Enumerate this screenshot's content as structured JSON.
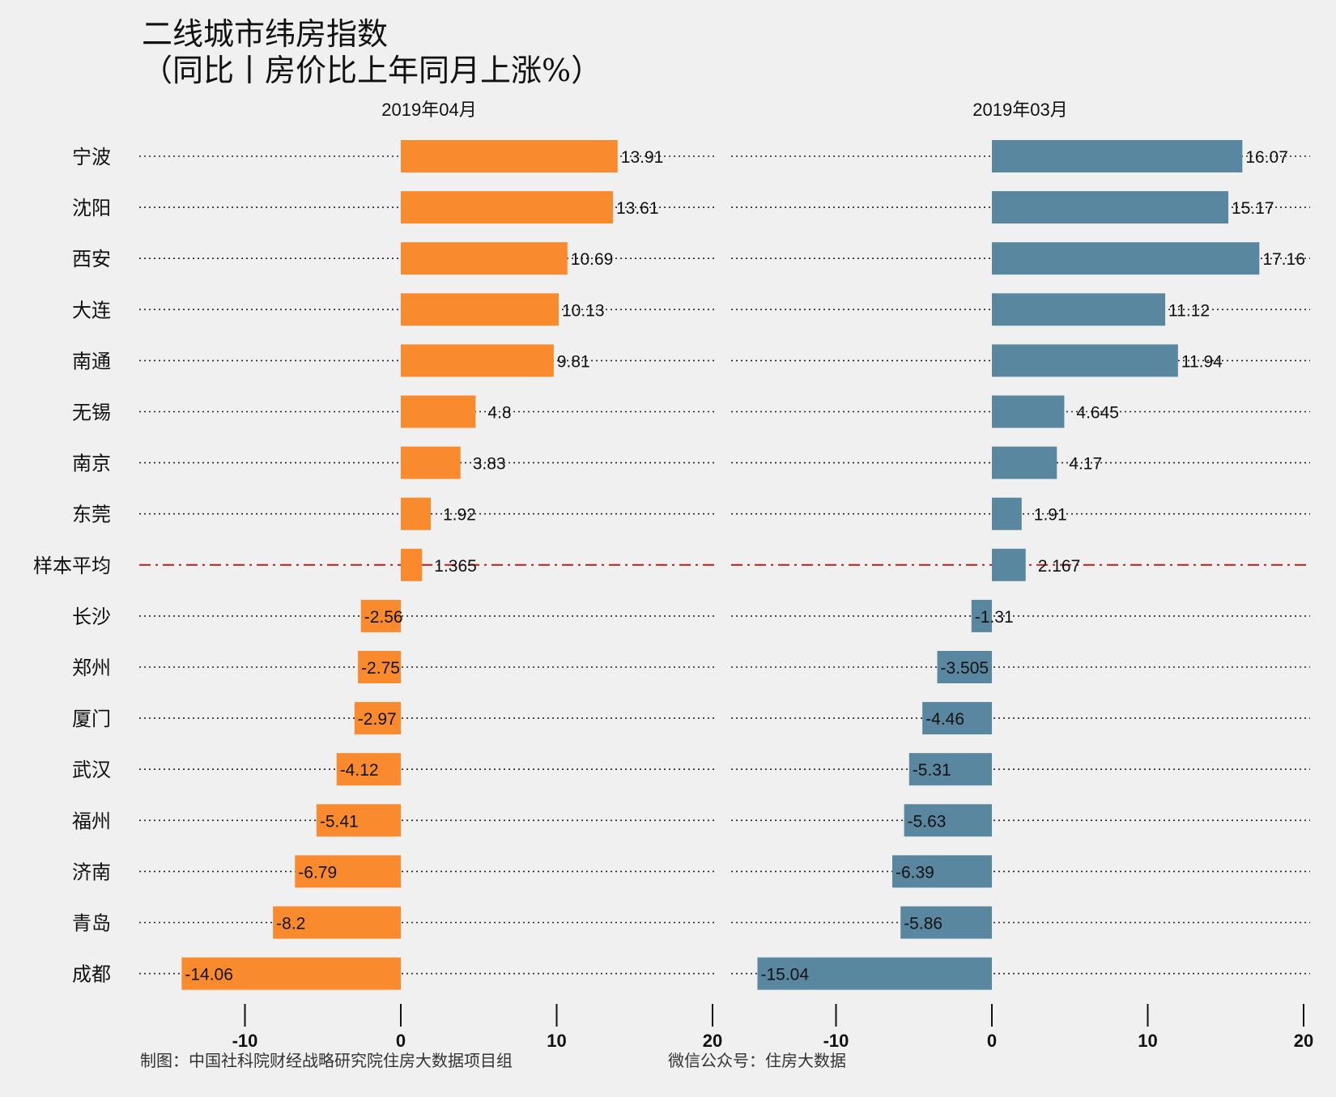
{
  "title_line1": "二线城市纬房指数",
  "title_line2": "（同比丨房价比上年同月上涨%）",
  "footer": {
    "credit": "制图：中国社科院财经战略研究院住房大数据项目组",
    "wechat": "微信公众号：住房大数据"
  },
  "colors": {
    "left_bar": "#fa8a2e",
    "right_bar": "#5a87a0",
    "average_line": "#b22222",
    "background": "#f0f0f0",
    "text": "#111111"
  },
  "chart_data": [
    {
      "type": "bar",
      "orientation": "horizontal",
      "title": "2019年04月",
      "categories": [
        "宁波",
        "沈阳",
        "西安",
        "大连",
        "南通",
        "无锡",
        "南京",
        "东莞",
        "样本平均",
        "长沙",
        "郑州",
        "厦门",
        "武汉",
        "福州",
        "济南",
        "青岛",
        "成都"
      ],
      "values": [
        13.91,
        13.61,
        10.69,
        10.13,
        9.81,
        4.8,
        3.83,
        1.92,
        1.365,
        -2.56,
        -2.75,
        -2.97,
        -4.12,
        -5.41,
        -6.79,
        -8.2,
        -14.06
      ],
      "value_labels": [
        "13.91",
        "13.61",
        "10.69",
        "10.13",
        "9.81",
        "4.8",
        "3.83",
        "1.92",
        "1.365",
        "-2.56",
        "-2.75",
        "-2.97",
        "-4.12",
        "-5.41",
        "-6.79",
        "-8.2",
        "-14.06"
      ],
      "xlim": [
        -17,
        20
      ],
      "xticks": [
        -10,
        0,
        10,
        20
      ],
      "xtick_labels": [
        "-10",
        "0",
        "10",
        "20"
      ],
      "average_category": "样本平均",
      "grid": "dotted-per-category"
    },
    {
      "type": "bar",
      "orientation": "horizontal",
      "title": "2019年03月",
      "categories": [
        "宁波",
        "沈阳",
        "西安",
        "大连",
        "南通",
        "无锡",
        "南京",
        "东莞",
        "样本平均",
        "长沙",
        "郑州",
        "厦门",
        "武汉",
        "福州",
        "济南",
        "青岛",
        "成都"
      ],
      "values": [
        16.07,
        15.17,
        17.16,
        11.12,
        11.94,
        4.645,
        4.17,
        1.91,
        2.167,
        -1.31,
        -3.505,
        -4.46,
        -5.31,
        -5.63,
        -6.39,
        -5.86,
        -15.04
      ],
      "value_labels": [
        "16.07",
        "15.17",
        "17.16",
        "11.12",
        "11.94",
        "4.645",
        "4.17",
        "1.91",
        "2.167",
        "-1.31",
        "-3.505",
        "-4.46",
        "-5.31",
        "-5.63",
        "-6.39",
        "-5.86",
        "-15.04"
      ],
      "xlim": [
        -17,
        20
      ],
      "xticks": [
        -10,
        0,
        10,
        20
      ],
      "xtick_labels": [
        "-10",
        "0",
        "10",
        "20"
      ],
      "average_category": "样本平均",
      "grid": "dotted-per-category"
    }
  ]
}
